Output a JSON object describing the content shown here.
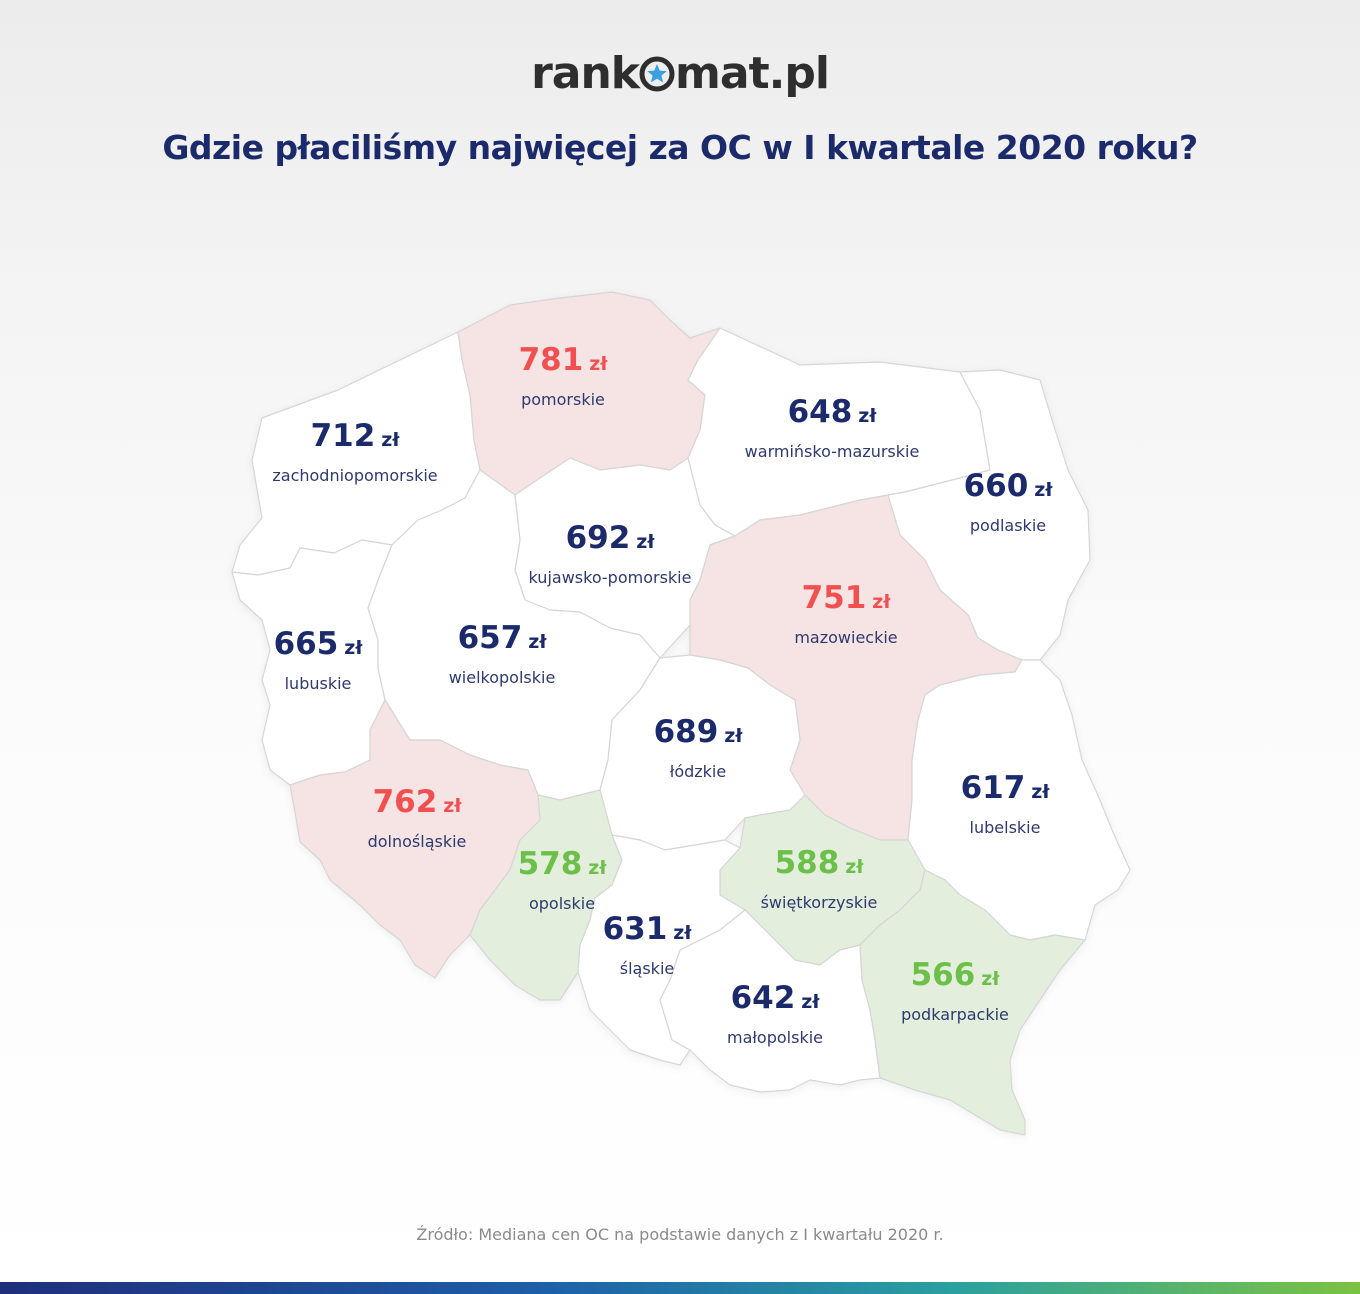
{
  "logo": {
    "text_left": "rank",
    "text_right": "mat.pl"
  },
  "title": "Gdzie płaciliśmy najwięcej za OC w I kwartale 2020 roku?",
  "unit": "zł",
  "colors": {
    "expensive": "#f05050",
    "cheap": "#6cc04a",
    "neutral": "#1b2a6b",
    "expensive_fill": "#f6e3e3",
    "cheap_fill": "#e3efdc"
  },
  "regions": [
    {
      "id": "zachodniopomorskie",
      "price": "712",
      "name": "zachodniopomorskie",
      "tier": "neutral"
    },
    {
      "id": "pomorskie",
      "price": "781",
      "name": "pomorskie",
      "tier": "expensive"
    },
    {
      "id": "warminsko-mazurskie",
      "price": "648",
      "name": "warmińsko-mazurskie",
      "tier": "neutral"
    },
    {
      "id": "podlaskie",
      "price": "660",
      "name": "podlaskie",
      "tier": "neutral"
    },
    {
      "id": "kujawsko-pomorskie",
      "price": "692",
      "name": "kujawsko-pomorskie",
      "tier": "neutral"
    },
    {
      "id": "mazowieckie",
      "price": "751",
      "name": "mazowieckie",
      "tier": "expensive"
    },
    {
      "id": "lubuskie",
      "price": "665",
      "name": "lubuskie",
      "tier": "neutral"
    },
    {
      "id": "wielkopolskie",
      "price": "657",
      "name": "wielkopolskie",
      "tier": "neutral"
    },
    {
      "id": "lodzkie",
      "price": "689",
      "name": "łódzkie",
      "tier": "neutral"
    },
    {
      "id": "lubelskie",
      "price": "617",
      "name": "lubelskie",
      "tier": "neutral"
    },
    {
      "id": "dolnoslaskie",
      "price": "762",
      "name": "dolnośląskie",
      "tier": "expensive"
    },
    {
      "id": "opolskie",
      "price": "578",
      "name": "opolskie",
      "tier": "cheap"
    },
    {
      "id": "swietokrzyskie",
      "price": "588",
      "name": "świętkorzyskie",
      "tier": "cheap"
    },
    {
      "id": "slaskie",
      "price": "631",
      "name": "śląskie",
      "tier": "neutral"
    },
    {
      "id": "malopolskie",
      "price": "642",
      "name": "małopolskie",
      "tier": "neutral"
    },
    {
      "id": "podkarpackie",
      "price": "566",
      "name": "podkarpackie",
      "tier": "cheap"
    }
  ],
  "source": "Źródło: Mediana cen OC na podstawie danych z I kwartału 2020 r."
}
